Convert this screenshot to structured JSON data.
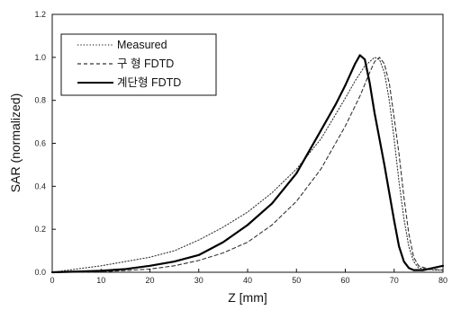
{
  "chart_data": {
    "type": "line",
    "title": "",
    "xlabel": "Z [mm]",
    "ylabel": "SAR (normalized)",
    "xlim": [
      0,
      80
    ],
    "ylim": [
      0,
      1.2
    ],
    "x_ticks": [
      "0",
      "10",
      "20",
      "30",
      "40",
      "50",
      "60",
      "70",
      "80"
    ],
    "y_ticks": [
      "0.0",
      "0.2",
      "0.4",
      "0.6",
      "0.8",
      "1.0",
      "1.2"
    ],
    "grid": false,
    "legend_position": "top-left",
    "series": [
      {
        "name": "Measured",
        "style": "dotted",
        "color": "#333333",
        "x": [
          0,
          5,
          10,
          15,
          20,
          25,
          30,
          35,
          40,
          45,
          50,
          55,
          60,
          62,
          64,
          66,
          67,
          68,
          69,
          70,
          71,
          72,
          73,
          74,
          75,
          78,
          80
        ],
        "y": [
          0.0,
          0.015,
          0.03,
          0.05,
          0.07,
          0.1,
          0.15,
          0.21,
          0.28,
          0.37,
          0.48,
          0.62,
          0.81,
          0.89,
          0.96,
          1.0,
          0.99,
          0.93,
          0.8,
          0.62,
          0.42,
          0.25,
          0.12,
          0.05,
          0.02,
          0.01,
          0.01
        ]
      },
      {
        "name": "구 형 FDTD",
        "style": "dashed",
        "color": "#333333",
        "x": [
          0,
          5,
          10,
          15,
          20,
          25,
          30,
          35,
          40,
          45,
          50,
          55,
          60,
          63,
          65,
          66,
          67,
          68,
          69,
          70,
          71,
          72,
          73,
          74,
          75,
          77,
          80
        ],
        "y": [
          0.0,
          0.0,
          0.002,
          0.008,
          0.015,
          0.03,
          0.055,
          0.09,
          0.14,
          0.22,
          0.33,
          0.48,
          0.68,
          0.82,
          0.93,
          0.98,
          1.0,
          0.97,
          0.88,
          0.72,
          0.55,
          0.35,
          0.18,
          0.07,
          0.03,
          0.015,
          0.01
        ]
      },
      {
        "name": "계단형 FDTD",
        "style": "solid",
        "color": "#000000",
        "x": [
          0,
          5,
          10,
          15,
          20,
          25,
          30,
          35,
          40,
          45,
          50,
          55,
          58,
          60,
          61,
          62,
          63,
          64,
          65,
          66,
          67,
          68,
          69,
          70,
          71,
          72,
          73,
          74,
          76,
          78,
          80
        ],
        "y": [
          0.0,
          0.003,
          0.007,
          0.015,
          0.03,
          0.05,
          0.08,
          0.14,
          0.22,
          0.32,
          0.46,
          0.66,
          0.78,
          0.87,
          0.92,
          0.97,
          1.01,
          0.99,
          0.88,
          0.74,
          0.62,
          0.5,
          0.37,
          0.24,
          0.12,
          0.05,
          0.02,
          0.01,
          0.01,
          0.02,
          0.03
        ]
      }
    ]
  }
}
